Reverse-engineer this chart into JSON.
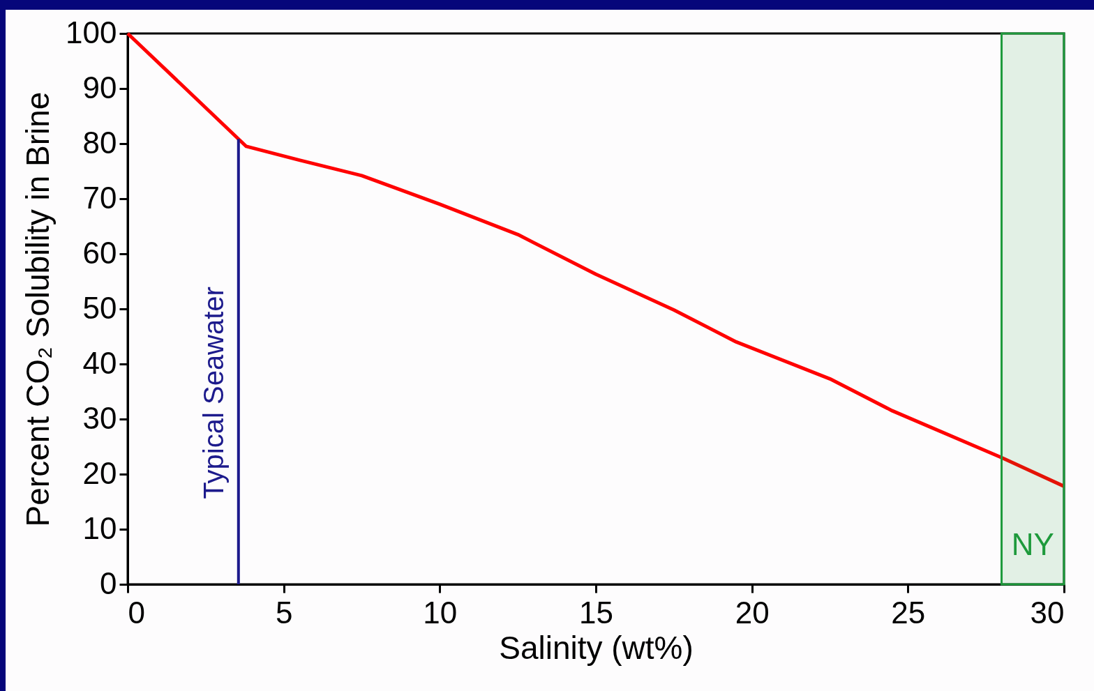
{
  "chart_data": {
    "type": "line",
    "xlabel": "Salinity (wt%)",
    "ylabel": "Percent CO₂ Solubility in Brine",
    "x": [
      0,
      3.8,
      5.5,
      7.5,
      10,
      12.5,
      15,
      17.5,
      19.5,
      22.5,
      24.5,
      28,
      30
    ],
    "series": [
      {
        "color": "#ff0000",
        "values": [
          100,
          79.5,
          77,
          74.2,
          69,
          63.5,
          56.3,
          49.8,
          44,
          37.3,
          31.5,
          23,
          17.8
        ]
      }
    ],
    "xlim": [
      0,
      30
    ],
    "ylim": [
      0,
      100
    ],
    "xticks": [
      0,
      5,
      10,
      15,
      20,
      25,
      30
    ],
    "yticks": [
      0,
      10,
      20,
      30,
      40,
      50,
      60,
      70,
      80,
      90,
      100
    ],
    "grid": false,
    "ref_lines": [
      {
        "axis": "x",
        "value": 3.55,
        "label": "Typical Seawater",
        "color": "#1c1a8c"
      }
    ],
    "bands": [
      {
        "axis": "x",
        "from": 28,
        "to": 30,
        "label": "NY",
        "color": "#1e9a3c"
      }
    ]
  }
}
